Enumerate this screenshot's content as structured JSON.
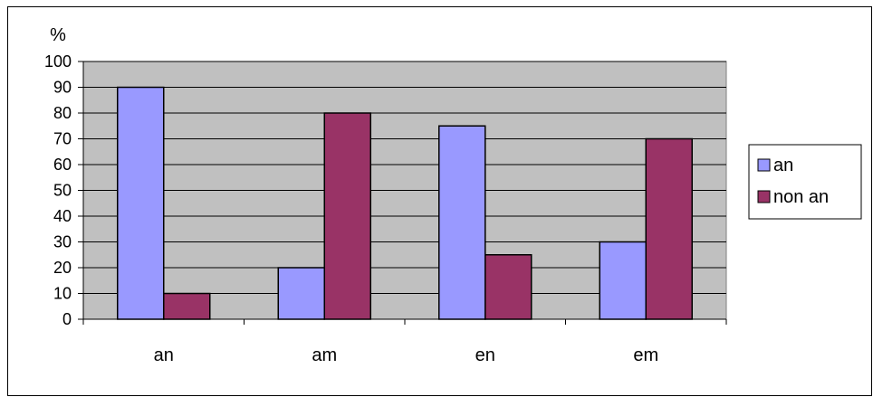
{
  "chart_data": {
    "type": "bar",
    "title": "",
    "ylabel": "%",
    "xlabel": "",
    "categories": [
      "an",
      "am",
      "en",
      "em"
    ],
    "series": [
      {
        "name": "an",
        "values": [
          90,
          20,
          75,
          30
        ],
        "color": "#9999ff"
      },
      {
        "name": "non an",
        "values": [
          10,
          80,
          25,
          70
        ],
        "color": "#993366"
      }
    ],
    "ylim": [
      0,
      100
    ],
    "ytick_step": 10,
    "grid": true,
    "plot_background": "#c0c0c0",
    "legend_position": "right"
  }
}
